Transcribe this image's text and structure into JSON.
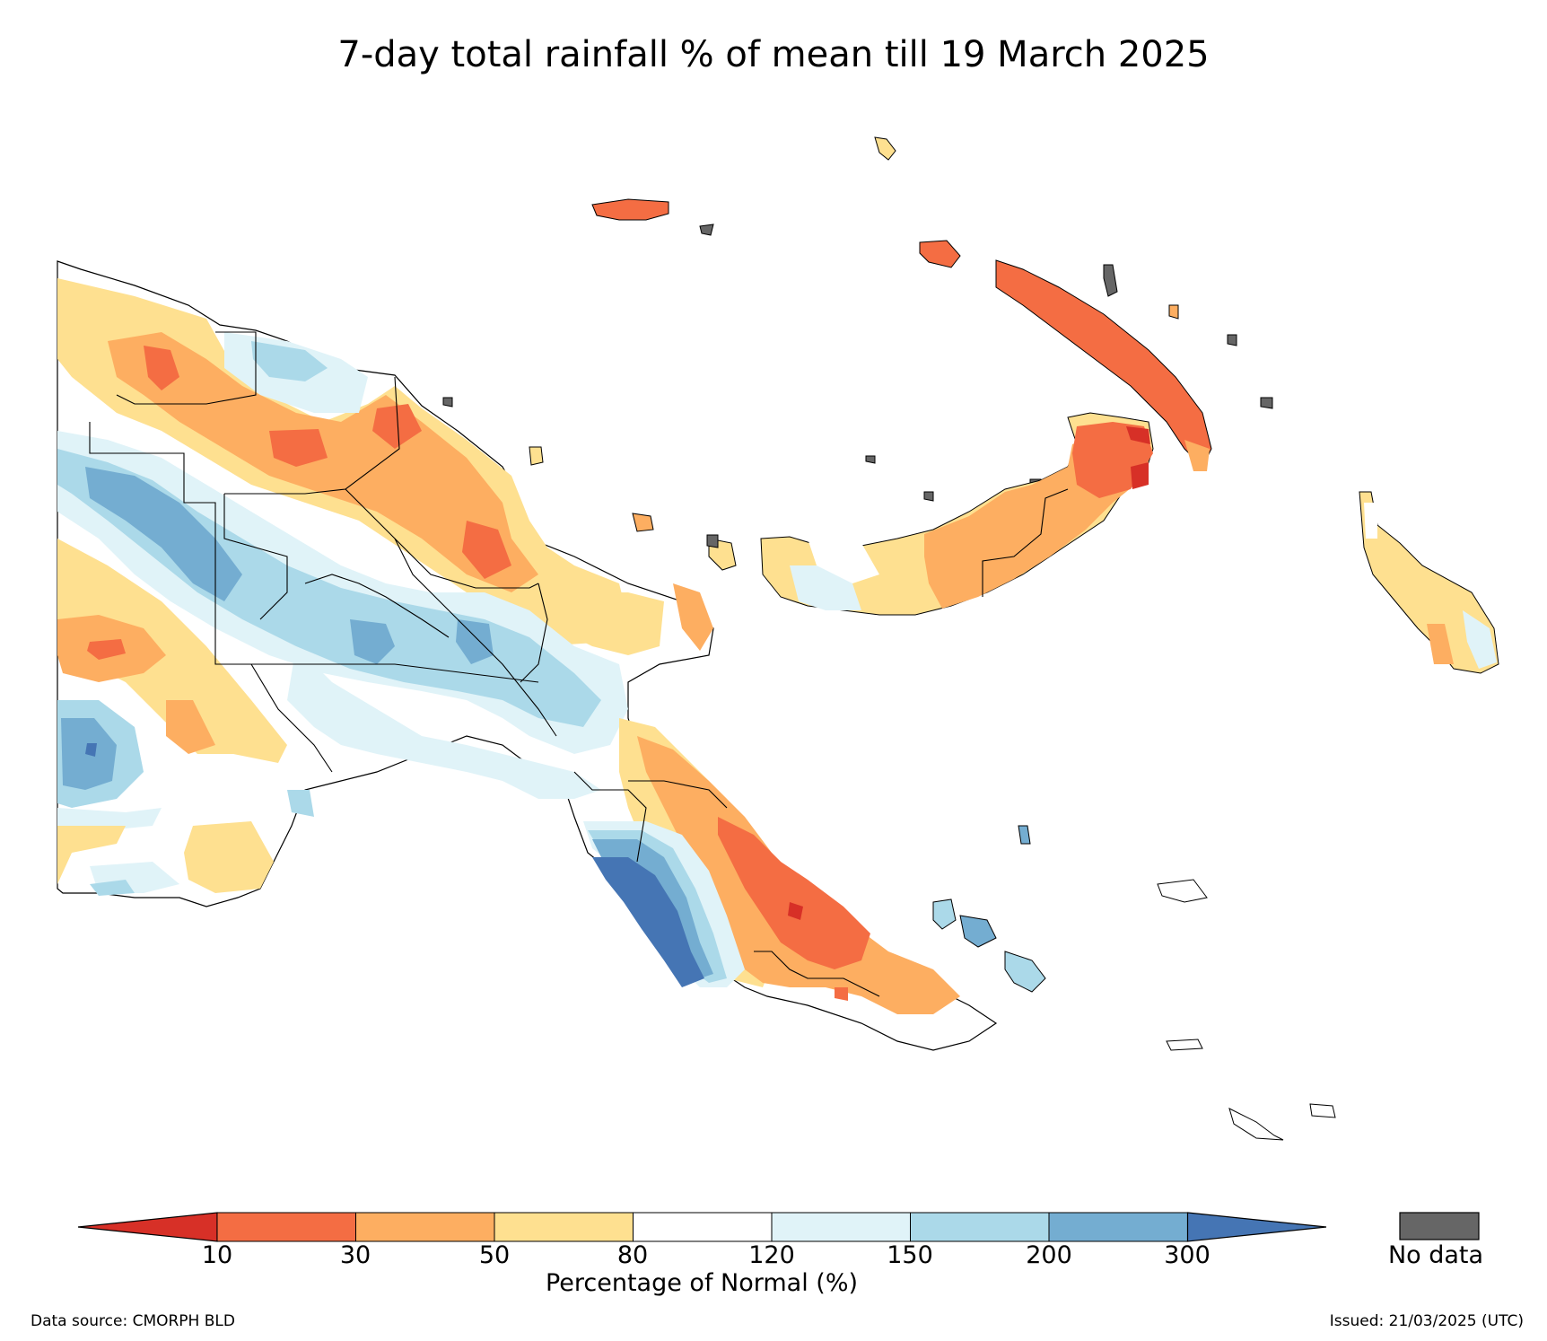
{
  "title": "7-day total rainfall % of mean till 19 March 2025",
  "legend": {
    "label": "Percentage of Normal (%)",
    "ticks": [
      "10",
      "30",
      "50",
      "80",
      "120",
      "150",
      "200",
      "300"
    ],
    "no_data_label": "No data",
    "bins": [
      {
        "range": "<10",
        "color": "#d73027"
      },
      {
        "range": "10-30",
        "color": "#f46d43"
      },
      {
        "range": "30-50",
        "color": "#fdae61"
      },
      {
        "range": "50-80",
        "color": "#fee090"
      },
      {
        "range": "80-120",
        "color": "#ffffff"
      },
      {
        "range": "120-150",
        "color": "#e0f3f8"
      },
      {
        "range": "150-200",
        "color": "#abd9e9"
      },
      {
        "range": "200-300",
        "color": "#74add1"
      },
      {
        "range": ">300",
        "color": "#4575b4"
      }
    ],
    "no_data_color": "#666666"
  },
  "footer": {
    "source": "Data source: CMORPH BLD",
    "issued": "Issued: 21/03/2025 (UTC)"
  },
  "map": {
    "region": "Papua New Guinea",
    "variable": "7-day total rainfall % of mean"
  }
}
